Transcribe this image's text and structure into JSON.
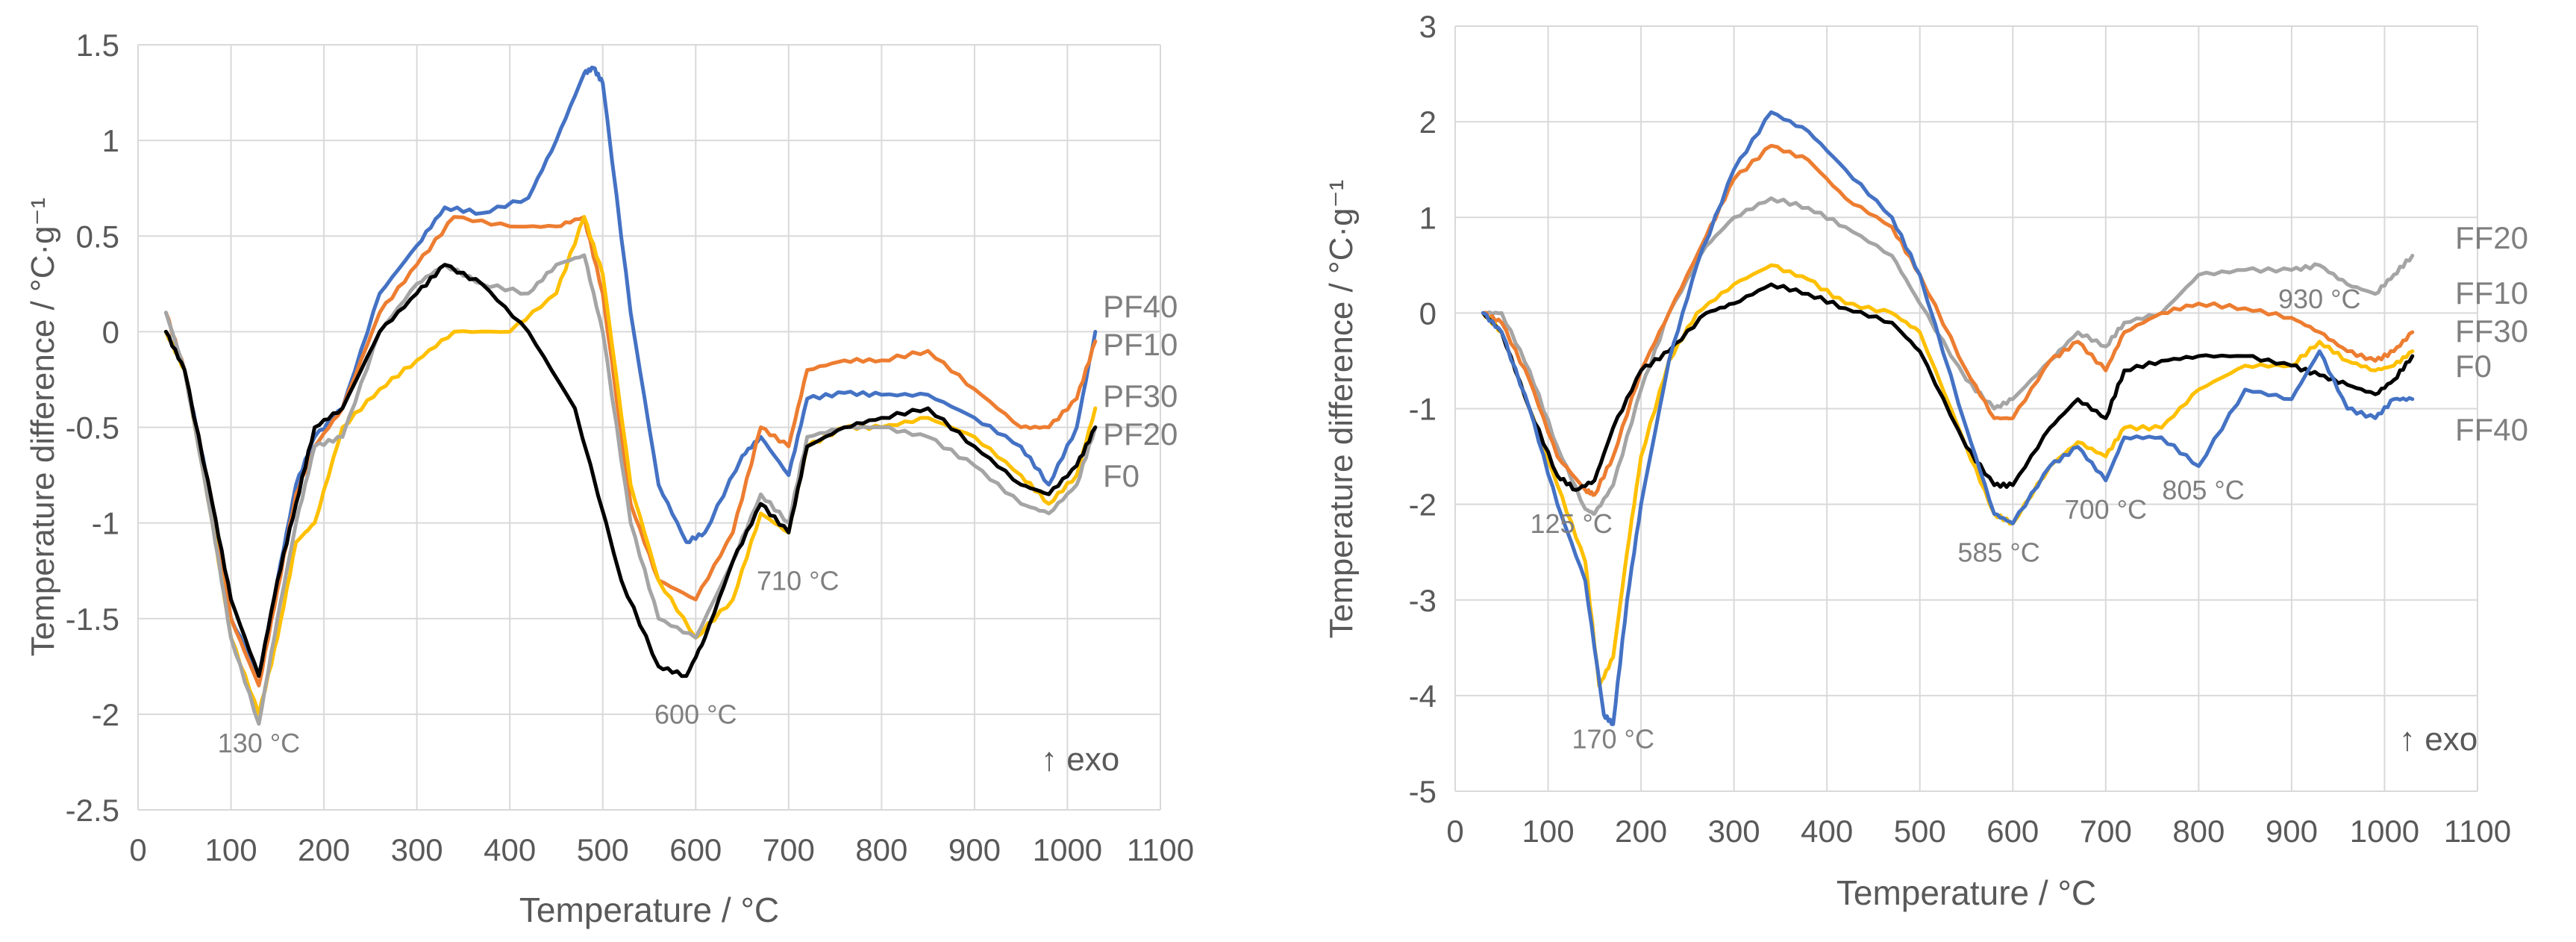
{
  "chart_data": [
    {
      "type": "line",
      "title": "",
      "xlabel": "Temperature / °C",
      "ylabel": "Temperature difference / °C·g⁻¹",
      "xlim": [
        0,
        1100
      ],
      "ylim": [
        -2.5,
        1.5
      ],
      "xticks": [
        0,
        100,
        200,
        300,
        400,
        500,
        600,
        700,
        800,
        900,
        1000,
        1100
      ],
      "yticks": [
        -2.5,
        -2,
        -1.5,
        -1,
        -0.5,
        0,
        0.5,
        1,
        1.5
      ],
      "grid": true,
      "colors": {
        "PF40": "#4472C4",
        "PF10": "#ED7D31",
        "PF30": "#FFC000",
        "PF20": "#A5A5A5",
        "F0": "#000000"
      },
      "series": [
        {
          "name": "PF40",
          "x": [
            30,
            50,
            80,
            100,
            130,
            150,
            170,
            190,
            220,
            260,
            300,
            330,
            370,
            420,
            450,
            480,
            490,
            500,
            530,
            560,
            590,
            610,
            650,
            670,
            700,
            720,
            760,
            800,
            850,
            900,
            950,
            980,
            1010,
            1030
          ],
          "y": [
            0,
            -0.2,
            -0.9,
            -1.5,
            -1.8,
            -1.3,
            -0.8,
            -0.55,
            -0.4,
            0.2,
            0.45,
            0.65,
            0.62,
            0.7,
            1,
            1.35,
            1.38,
            1.3,
            0.1,
            -0.8,
            -1.1,
            -1.05,
            -0.65,
            -0.55,
            -0.75,
            -0.35,
            -0.32,
            -0.33,
            -0.33,
            -0.45,
            -0.6,
            -0.8,
            -0.5,
            0
          ]
        },
        {
          "name": "PF10",
          "x": [
            30,
            50,
            80,
            100,
            130,
            150,
            170,
            190,
            220,
            260,
            300,
            340,
            400,
            450,
            480,
            500,
            530,
            560,
            600,
            640,
            670,
            700,
            720,
            760,
            800,
            850,
            900,
            950,
            980,
            1010,
            1030
          ],
          "y": [
            0.1,
            -0.2,
            -0.9,
            -1.5,
            -1.85,
            -1.35,
            -0.85,
            -0.6,
            -0.4,
            0.1,
            0.35,
            0.6,
            0.55,
            0.55,
            0.6,
            0.2,
            -0.9,
            -1.3,
            -1.4,
            -1.05,
            -0.5,
            -0.6,
            -0.2,
            -0.15,
            -0.15,
            -0.1,
            -0.3,
            -0.5,
            -0.5,
            -0.35,
            -0.05
          ]
        },
        {
          "name": "PF30",
          "x": [
            30,
            50,
            80,
            100,
            130,
            150,
            170,
            190,
            220,
            260,
            300,
            340,
            400,
            450,
            480,
            500,
            530,
            560,
            600,
            640,
            670,
            700,
            720,
            760,
            800,
            850,
            900,
            950,
            980,
            1010,
            1030
          ],
          "y": [
            0,
            -0.2,
            -1,
            -1.6,
            -2,
            -1.6,
            -1.1,
            -1.0,
            -0.5,
            -0.3,
            -0.15,
            0,
            0,
            0.2,
            0.6,
            0.3,
            -0.8,
            -1.3,
            -1.6,
            -1.4,
            -0.95,
            -1.05,
            -0.6,
            -0.5,
            -0.5,
            -0.45,
            -0.55,
            -0.75,
            -0.9,
            -0.75,
            -0.4
          ]
        },
        {
          "name": "PF20",
          "x": [
            30,
            50,
            80,
            100,
            130,
            150,
            170,
            190,
            220,
            260,
            300,
            330,
            370,
            420,
            450,
            480,
            500,
            530,
            560,
            600,
            640,
            670,
            700,
            720,
            760,
            800,
            850,
            900,
            950,
            980,
            1010,
            1030
          ],
          "y": [
            0.1,
            -0.2,
            -1,
            -1.6,
            -2.05,
            -1.5,
            -1.0,
            -0.6,
            -0.55,
            0,
            0.25,
            0.35,
            0.25,
            0.2,
            0.35,
            0.4,
            0,
            -1,
            -1.5,
            -1.6,
            -1.2,
            -0.85,
            -1.0,
            -0.55,
            -0.5,
            -0.5,
            -0.55,
            -0.7,
            -0.9,
            -0.95,
            -0.8,
            -0.5
          ]
        },
        {
          "name": "F0",
          "x": [
            30,
            50,
            80,
            100,
            130,
            150,
            170,
            190,
            220,
            260,
            300,
            330,
            370,
            420,
            470,
            520,
            560,
            590,
            610,
            640,
            670,
            700,
            720,
            760,
            800,
            850,
            900,
            950,
            980,
            1010,
            1030
          ],
          "y": [
            0,
            -0.2,
            -0.9,
            -1.4,
            -1.8,
            -1.3,
            -0.9,
            -0.5,
            -0.4,
            0,
            0.2,
            0.35,
            0.25,
            0,
            -0.4,
            -1.3,
            -1.75,
            -1.8,
            -1.6,
            -1.2,
            -0.9,
            -1.05,
            -0.6,
            -0.5,
            -0.45,
            -0.4,
            -0.6,
            -0.8,
            -0.85,
            -0.7,
            -0.5
          ]
        }
      ],
      "legend_labels": [
        "PF40",
        "PF10",
        "PF30",
        "PF20",
        "F0"
      ],
      "annotations": [
        {
          "text": "130 °C",
          "x": 130,
          "y": -2.2
        },
        {
          "text": "600 °C",
          "x": 600,
          "y": -2.05
        },
        {
          "text": "710 °C",
          "x": 710,
          "y": -1.35
        }
      ],
      "exo_label": "↑ exo"
    },
    {
      "type": "line",
      "title": "",
      "xlabel": "Temperature / °C",
      "ylabel": "Temperature difference / °C·g⁻¹",
      "xlim": [
        0,
        1100
      ],
      "ylim": [
        -5,
        3
      ],
      "xticks": [
        0,
        100,
        200,
        300,
        400,
        500,
        600,
        700,
        800,
        900,
        1000,
        1100
      ],
      "yticks": [
        -5,
        -4,
        -3,
        -2,
        -1,
        0,
        1,
        2,
        3
      ],
      "grid": true,
      "colors": {
        "FF20": "#A5A5A5",
        "FF10": "#ED7D31",
        "FF30": "#FFC000",
        "F0": "#000000",
        "FF40": "#4472C4"
      },
      "series": [
        {
          "name": "FF20",
          "x": [
            30,
            50,
            80,
            110,
            140,
            150,
            170,
            200,
            230,
            270,
            300,
            340,
            380,
            420,
            470,
            500,
            550,
            580,
            600,
            640,
            670,
            700,
            720,
            760,
            800,
            850,
            900,
            930,
            960,
            990,
            1010,
            1030
          ],
          "y": [
            0,
            0,
            -0.6,
            -1.4,
            -2.05,
            -2.1,
            -1.8,
            -0.8,
            0,
            0.7,
            1.0,
            1.2,
            1.1,
            0.9,
            0.6,
            0.1,
            -0.7,
            -1.0,
            -0.9,
            -0.5,
            -0.2,
            -0.35,
            -0.1,
            0,
            0.4,
            0.45,
            0.45,
            0.5,
            0.3,
            0.2,
            0.4,
            0.6
          ]
        },
        {
          "name": "FF10",
          "x": [
            30,
            50,
            80,
            110,
            140,
            150,
            170,
            200,
            230,
            270,
            300,
            340,
            380,
            420,
            470,
            500,
            550,
            580,
            600,
            640,
            670,
            700,
            720,
            760,
            800,
            850,
            900,
            930,
            960,
            990,
            1010,
            1030
          ],
          "y": [
            0,
            -0.1,
            -0.7,
            -1.5,
            -1.85,
            -1.9,
            -1.5,
            -0.6,
            0,
            0.8,
            1.4,
            1.75,
            1.6,
            1.2,
            0.9,
            0.4,
            -0.6,
            -1.1,
            -1.1,
            -0.5,
            -0.3,
            -0.6,
            -0.2,
            0,
            0.1,
            0.05,
            -0.05,
            -0.2,
            -0.4,
            -0.5,
            -0.4,
            -0.2
          ]
        },
        {
          "name": "FF30",
          "x": [
            30,
            50,
            80,
            110,
            140,
            155,
            170,
            185,
            200,
            230,
            260,
            300,
            340,
            380,
            420,
            470,
            500,
            550,
            580,
            600,
            640,
            670,
            700,
            720,
            760,
            800,
            850,
            900,
            930,
            960,
            990,
            1010,
            1030
          ],
          "y": [
            0,
            -0.2,
            -1.0,
            -1.8,
            -2.6,
            -3.9,
            -3.6,
            -2.5,
            -1.5,
            -0.5,
            0,
            0.3,
            0.5,
            0.35,
            0.1,
            0,
            -0.2,
            -1.4,
            -2.1,
            -2.2,
            -1.6,
            -1.35,
            -1.5,
            -1.2,
            -1.2,
            -0.8,
            -0.55,
            -0.55,
            -0.3,
            -0.5,
            -0.6,
            -0.55,
            -0.4
          ]
        },
        {
          "name": "F0",
          "x": [
            30,
            50,
            80,
            110,
            130,
            150,
            170,
            200,
            230,
            270,
            300,
            340,
            380,
            420,
            470,
            500,
            550,
            580,
            600,
            640,
            670,
            700,
            720,
            760,
            800,
            850,
            900,
            930,
            960,
            990,
            1010,
            1030
          ],
          "y": [
            0,
            -0.2,
            -1.0,
            -1.7,
            -1.85,
            -1.75,
            -1.2,
            -0.6,
            -0.4,
            0,
            0.1,
            0.3,
            0.2,
            0.05,
            -0.1,
            -0.4,
            -1.4,
            -1.8,
            -1.8,
            -1.2,
            -0.9,
            -1.1,
            -0.6,
            -0.5,
            -0.45,
            -0.45,
            -0.55,
            -0.65,
            -0.75,
            -0.85,
            -0.7,
            -0.45
          ]
        },
        {
          "name": "FF40",
          "x": [
            30,
            50,
            80,
            110,
            140,
            160,
            170,
            185,
            200,
            230,
            260,
            300,
            340,
            380,
            420,
            470,
            500,
            550,
            580,
            600,
            640,
            670,
            700,
            720,
            760,
            800,
            850,
            900,
            930,
            960,
            990,
            1010,
            1030
          ],
          "y": [
            0,
            -0.2,
            -1.0,
            -2.0,
            -2.8,
            -4.2,
            -4.3,
            -3.0,
            -2.0,
            -0.5,
            0.5,
            1.5,
            2.1,
            1.9,
            1.5,
            1.0,
            0.4,
            -1.2,
            -2.1,
            -2.2,
            -1.6,
            -1.4,
            -1.75,
            -1.3,
            -1.3,
            -1.6,
            -0.8,
            -0.9,
            -0.4,
            -1.0,
            -1.1,
            -0.9,
            -0.9
          ]
        }
      ],
      "legend_labels": [
        "FF20",
        "FF10",
        "FF30",
        "F0",
        "FF40"
      ],
      "annotations": [
        {
          "text": "125 °C",
          "x": 125,
          "y": -2.3
        },
        {
          "text": "170 °C",
          "x": 170,
          "y": -4.55
        },
        {
          "text": "585 °C",
          "x": 585,
          "y": -2.6
        },
        {
          "text": "700 °C",
          "x": 700,
          "y": -2.15
        },
        {
          "text": "805 °C",
          "x": 805,
          "y": -1.95
        },
        {
          "text": "930 °C",
          "x": 930,
          "y": 0.05
        }
      ],
      "exo_label": "↑ exo"
    }
  ]
}
